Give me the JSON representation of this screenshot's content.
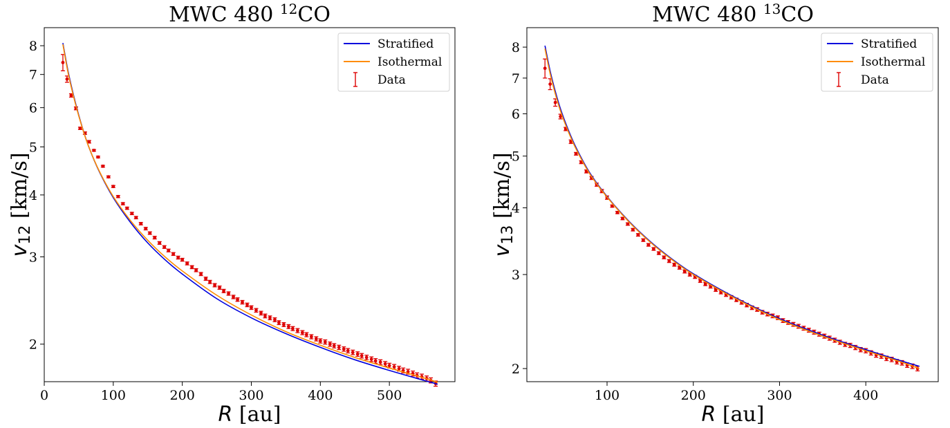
{
  "chart_data": [
    {
      "type": "line",
      "title": "MWC 480 ",
      "title_sup": "12",
      "title_suffix": "CO",
      "xlabel_var": "R",
      "xlabel_unit": " [au]",
      "ylabel_var": "v",
      "ylabel_sub": "12",
      "ylabel_unit": " [km/s]",
      "xlim": [
        0,
        595
      ],
      "ylim": [
        1.68,
        8.7
      ],
      "yscale": "log",
      "xticks": [
        0,
        100,
        200,
        300,
        400,
        500
      ],
      "xtick_labels": [
        "0",
        "100",
        "200",
        "300",
        "400",
        "500"
      ],
      "yticks": [
        2,
        3,
        4,
        5,
        6,
        7,
        8
      ],
      "ytick_labels": [
        "2",
        "3",
        "4",
        "5",
        "6",
        "7",
        "8"
      ],
      "legend_position": "top-right",
      "legend": [
        "Stratified",
        "Isothermal",
        "Data"
      ],
      "grid": false,
      "series": [
        {
          "name": "Stratified",
          "color": "#0000dd",
          "x": [
            27,
            35,
            45,
            55,
            65,
            80,
            100,
            125,
            150,
            175,
            200,
            250,
            300,
            350,
            400,
            450,
            500,
            550,
            570
          ],
          "y": [
            8.1,
            7.05,
            6.15,
            5.48,
            4.98,
            4.45,
            3.95,
            3.52,
            3.2,
            2.96,
            2.77,
            2.47,
            2.26,
            2.1,
            1.97,
            1.86,
            1.77,
            1.69,
            1.66
          ]
        },
        {
          "name": "Isothermal",
          "color": "#ff8c00",
          "x": [
            27,
            35,
            45,
            55,
            65,
            80,
            100,
            125,
            150,
            175,
            200,
            250,
            300,
            350,
            400,
            450,
            500,
            550,
            570
          ],
          "y": [
            8.05,
            7.0,
            6.12,
            5.47,
            4.98,
            4.46,
            3.97,
            3.55,
            3.24,
            3.0,
            2.81,
            2.51,
            2.29,
            2.12,
            1.99,
            1.88,
            1.79,
            1.71,
            1.675
          ]
        },
        {
          "name": "Data",
          "color": "#dd0000",
          "x": [
            27,
            33,
            39,
            46,
            52,
            59,
            65,
            72,
            78,
            85,
            93,
            100,
            107,
            114,
            120,
            127,
            133,
            140,
            147,
            153,
            160,
            167,
            174,
            180,
            187,
            194,
            200,
            207,
            214,
            220,
            227,
            234,
            240,
            247,
            254,
            260,
            267,
            274,
            280,
            287,
            294,
            300,
            307,
            314,
            320,
            327,
            334,
            340,
            347,
            354,
            360,
            367,
            374,
            380,
            387,
            394,
            400,
            407,
            414,
            420,
            427,
            434,
            440,
            447,
            454,
            460,
            467,
            474,
            480,
            487,
            494,
            500,
            507,
            514,
            520,
            527,
            534,
            540,
            547,
            554,
            560,
            567
          ],
          "y": [
            7.4,
            6.85,
            6.35,
            5.98,
            5.45,
            5.33,
            5.12,
            4.92,
            4.77,
            4.57,
            4.35,
            4.16,
            3.97,
            3.84,
            3.76,
            3.67,
            3.6,
            3.5,
            3.42,
            3.35,
            3.28,
            3.2,
            3.14,
            3.09,
            3.04,
            2.99,
            2.96,
            2.91,
            2.86,
            2.82,
            2.77,
            2.71,
            2.67,
            2.63,
            2.6,
            2.56,
            2.53,
            2.49,
            2.46,
            2.43,
            2.4,
            2.37,
            2.34,
            2.31,
            2.28,
            2.26,
            2.24,
            2.21,
            2.19,
            2.17,
            2.15,
            2.13,
            2.11,
            2.09,
            2.07,
            2.05,
            2.03,
            2.02,
            2.0,
            1.985,
            1.97,
            1.955,
            1.94,
            1.925,
            1.91,
            1.895,
            1.88,
            1.865,
            1.85,
            1.84,
            1.825,
            1.81,
            1.8,
            1.785,
            1.77,
            1.76,
            1.745,
            1.73,
            1.72,
            1.705,
            1.69,
            1.665
          ],
          "err": [
            0.28,
            0.1,
            0.05,
            0.04,
            0.03,
            0.03,
            0.03,
            0.02,
            0.02,
            0.02,
            0.02,
            0.02,
            0.02,
            0.02,
            0.02,
            0.02,
            0.02,
            0.02,
            0.02,
            0.02,
            0.02,
            0.02,
            0.02,
            0.02,
            0.02,
            0.02,
            0.02,
            0.02,
            0.02,
            0.02,
            0.02,
            0.02,
            0.02,
            0.02,
            0.02,
            0.02,
            0.02,
            0.02,
            0.02,
            0.02,
            0.02,
            0.02,
            0.02,
            0.02,
            0.02,
            0.02,
            0.02,
            0.02,
            0.02,
            0.02,
            0.02,
            0.02,
            0.02,
            0.02,
            0.02,
            0.02,
            0.02,
            0.02,
            0.02,
            0.02,
            0.02,
            0.02,
            0.02,
            0.02,
            0.02,
            0.02,
            0.02,
            0.02,
            0.02,
            0.02,
            0.02,
            0.02,
            0.02,
            0.02,
            0.02,
            0.02,
            0.02,
            0.02,
            0.02,
            0.02,
            0.02,
            0.02
          ]
        }
      ]
    },
    {
      "type": "line",
      "title": "MWC 480 ",
      "title_sup": "13",
      "title_suffix": "CO",
      "xlabel_var": "R",
      "xlabel_unit": " [au]",
      "ylabel_var": "v",
      "ylabel_sub": "13",
      "ylabel_unit": " [km/s]",
      "xlim": [
        7,
        484
      ],
      "ylim": [
        1.89,
        8.7
      ],
      "yscale": "log",
      "xticks": [
        100,
        200,
        300,
        400
      ],
      "xtick_labels": [
        "100",
        "200",
        "300",
        "400"
      ],
      "yticks": [
        2,
        3,
        4,
        5,
        6,
        7,
        8
      ],
      "ytick_labels": [
        "2",
        "3",
        "4",
        "5",
        "6",
        "7",
        "8"
      ],
      "legend_position": "top-right",
      "legend": [
        "Stratified",
        "Isothermal",
        "Data"
      ],
      "grid": false,
      "series": [
        {
          "name": "Stratified",
          "color": "#0000dd",
          "x": [
            28,
            35,
            45,
            55,
            65,
            80,
            100,
            125,
            150,
            175,
            200,
            250,
            300,
            350,
            400,
            440,
            462
          ],
          "y": [
            8.05,
            7.1,
            6.2,
            5.6,
            5.15,
            4.65,
            4.2,
            3.78,
            3.46,
            3.21,
            3.01,
            2.71,
            2.48,
            2.31,
            2.17,
            2.07,
            2.02
          ]
        },
        {
          "name": "Isothermal",
          "color": "#ff8c00",
          "x": [
            28,
            35,
            45,
            55,
            65,
            80,
            100,
            125,
            150,
            175,
            200,
            250,
            300,
            350,
            400,
            440,
            462
          ],
          "y": [
            7.95,
            7.02,
            6.14,
            5.56,
            5.12,
            4.63,
            4.19,
            3.77,
            3.45,
            3.2,
            3.0,
            2.7,
            2.47,
            2.3,
            2.16,
            2.06,
            2.0
          ]
        },
        {
          "name": "Data",
          "color": "#dd0000",
          "x": [
            28,
            34,
            40,
            46,
            52,
            58,
            64,
            70,
            76,
            82,
            88,
            94,
            100,
            106,
            112,
            118,
            124,
            130,
            136,
            142,
            148,
            154,
            160,
            166,
            172,
            178,
            184,
            190,
            196,
            202,
            208,
            214,
            220,
            226,
            232,
            238,
            244,
            250,
            256,
            262,
            268,
            274,
            280,
            286,
            292,
            298,
            304,
            310,
            316,
            322,
            328,
            334,
            340,
            346,
            352,
            358,
            364,
            370,
            376,
            382,
            388,
            394,
            400,
            406,
            412,
            418,
            424,
            430,
            436,
            442,
            448,
            454,
            460
          ],
          "y": [
            7.3,
            6.82,
            6.3,
            5.93,
            5.62,
            5.32,
            5.05,
            4.87,
            4.68,
            4.55,
            4.42,
            4.3,
            4.18,
            4.03,
            3.92,
            3.82,
            3.73,
            3.64,
            3.56,
            3.48,
            3.41,
            3.35,
            3.29,
            3.23,
            3.18,
            3.13,
            3.09,
            3.04,
            3.0,
            2.97,
            2.92,
            2.88,
            2.85,
            2.81,
            2.78,
            2.75,
            2.72,
            2.69,
            2.66,
            2.63,
            2.6,
            2.58,
            2.55,
            2.53,
            2.51,
            2.49,
            2.46,
            2.44,
            2.42,
            2.4,
            2.38,
            2.36,
            2.34,
            2.32,
            2.3,
            2.28,
            2.26,
            2.24,
            2.22,
            2.21,
            2.19,
            2.17,
            2.16,
            2.14,
            2.12,
            2.11,
            2.09,
            2.08,
            2.06,
            2.05,
            2.03,
            2.02,
            2.0
          ],
          "err": [
            0.3,
            0.16,
            0.1,
            0.06,
            0.04,
            0.04,
            0.03,
            0.03,
            0.03,
            0.03,
            0.03,
            0.03,
            0.03,
            0.02,
            0.02,
            0.02,
            0.02,
            0.02,
            0.02,
            0.02,
            0.02,
            0.02,
            0.02,
            0.02,
            0.02,
            0.02,
            0.02,
            0.02,
            0.02,
            0.02,
            0.02,
            0.02,
            0.02,
            0.02,
            0.02,
            0.02,
            0.02,
            0.02,
            0.02,
            0.02,
            0.02,
            0.02,
            0.02,
            0.02,
            0.02,
            0.02,
            0.02,
            0.02,
            0.02,
            0.02,
            0.02,
            0.02,
            0.02,
            0.02,
            0.02,
            0.02,
            0.02,
            0.02,
            0.02,
            0.02,
            0.02,
            0.02,
            0.02,
            0.02,
            0.02,
            0.02,
            0.02,
            0.02,
            0.02,
            0.02,
            0.02,
            0.02,
            0.02
          ]
        }
      ]
    }
  ]
}
